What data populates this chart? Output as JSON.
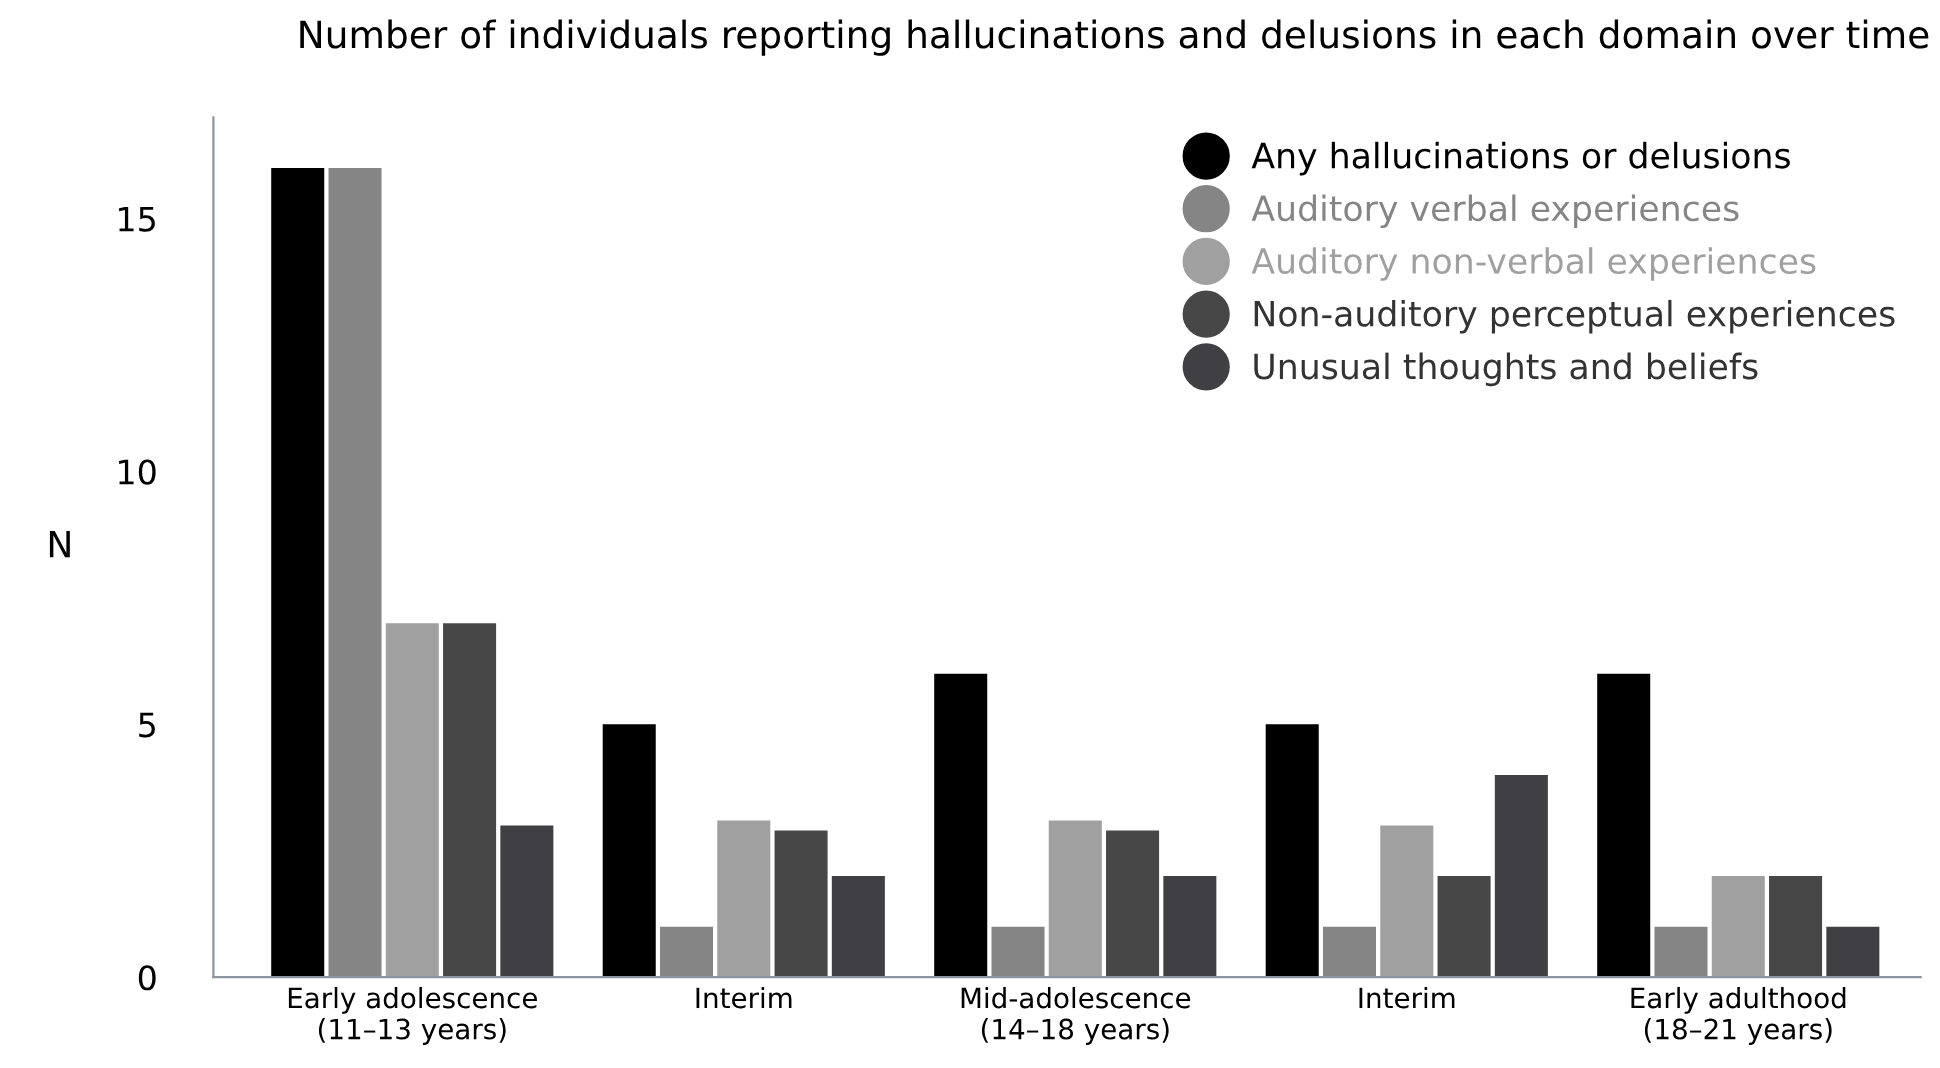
{
  "chart_data": {
    "type": "bar",
    "title": "Number of individuals reporting hallucinations and delusions in each domain over time",
    "ylabel": "N",
    "categories": [
      "Early adolescence\n(11–13 years)",
      "Interim",
      "Mid-adolescence\n(14–18 years)",
      "Interim",
      "Early adulthood\n(18–21 years)"
    ],
    "series": [
      {
        "name": "Any hallucinations or delusions",
        "color": "#000000",
        "values": [
          16,
          5,
          6,
          5,
          6
        ]
      },
      {
        "name": "Auditory verbal experiences",
        "color": "#858585",
        "values": [
          16,
          1,
          1,
          1,
          1
        ]
      },
      {
        "name": "Auditory non-verbal experiences",
        "color": "#a0a0a0",
        "values": [
          7,
          3.1,
          3.1,
          3,
          2
        ]
      },
      {
        "name": "Non-auditory perceptual experiences",
        "color": "#474747",
        "values": [
          7,
          2.9,
          2.9,
          2,
          2
        ]
      },
      {
        "name": "Unusual thoughts and beliefs",
        "color": "#404044",
        "values": [
          3,
          2,
          2,
          4,
          1
        ]
      }
    ],
    "ylim": [
      0,
      17
    ],
    "yticks": [
      0,
      5,
      10,
      15
    ],
    "grid": false,
    "legend": "top right",
    "marker": "circle"
  }
}
